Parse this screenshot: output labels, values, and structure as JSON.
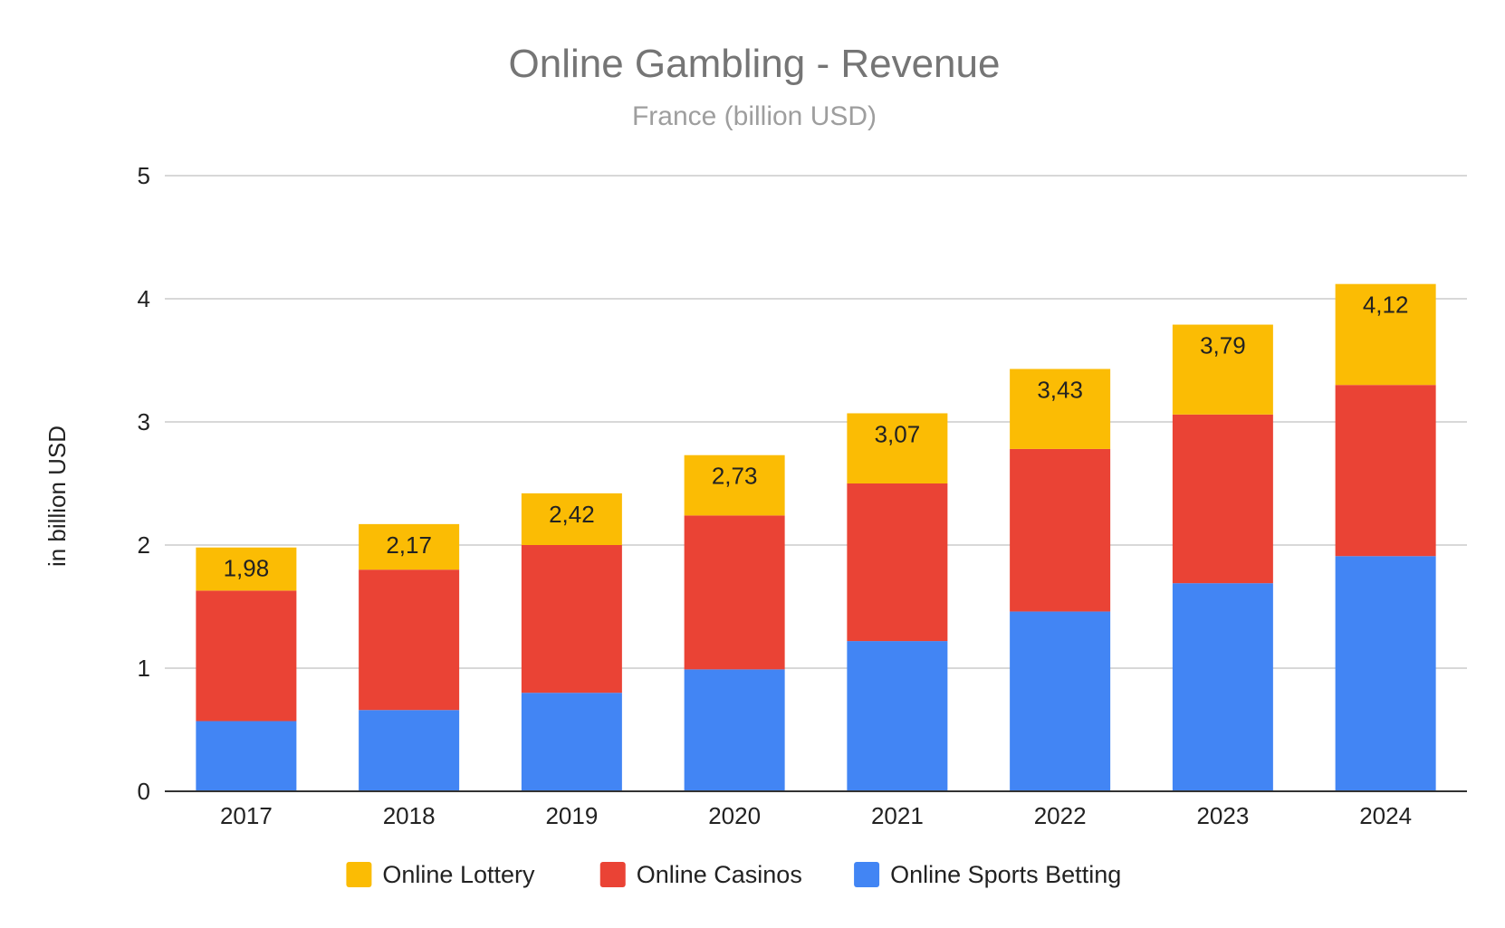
{
  "chart_data": {
    "type": "bar",
    "stacked": true,
    "title": "Online Gambling - Revenue",
    "subtitle": "France (billion USD)",
    "ylabel": "in billion USD",
    "xlabel": "",
    "ylim": [
      0,
      5
    ],
    "yticks": [
      "0",
      "1",
      "2",
      "3",
      "4",
      "5"
    ],
    "grid": true,
    "legend_position": "bottom",
    "categories": [
      "2017",
      "2018",
      "2019",
      "2020",
      "2021",
      "2022",
      "2023",
      "2024"
    ],
    "series": [
      {
        "name": "Online Sports Betting",
        "color": "#4285f4",
        "values": [
          0.57,
          0.66,
          0.8,
          0.99,
          1.22,
          1.46,
          1.69,
          1.91
        ]
      },
      {
        "name": "Online Casinos",
        "color": "#ea4335",
        "values": [
          1.06,
          1.14,
          1.2,
          1.25,
          1.28,
          1.32,
          1.37,
          1.39
        ]
      },
      {
        "name": "Online Lottery",
        "color": "#fbbc04",
        "values": [
          0.35,
          0.37,
          0.42,
          0.49,
          0.57,
          0.65,
          0.73,
          0.82
        ]
      }
    ],
    "total_labels": [
      "1,98",
      "2,17",
      "2,42",
      "2,73",
      "3,07",
      "3,43",
      "3,79",
      "4,12"
    ],
    "legend_order": [
      "Online Lottery",
      "Online Casinos",
      "Online Sports Betting"
    ]
  }
}
